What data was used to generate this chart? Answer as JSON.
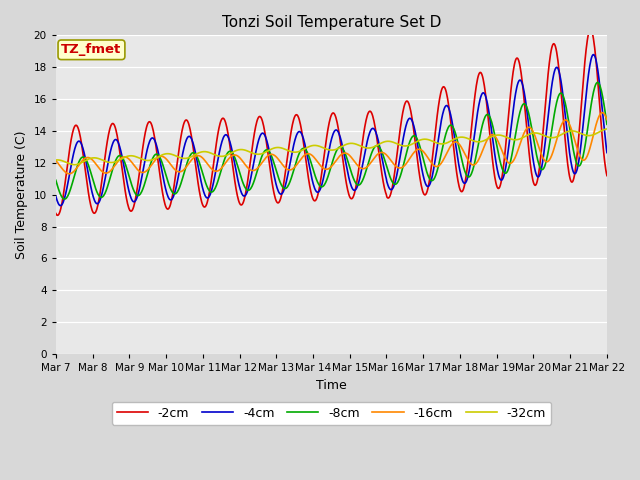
{
  "title": "Tonzi Soil Temperature Set D",
  "xlabel": "Time",
  "ylabel": "Soil Temperature (C)",
  "ylim": [
    0,
    20
  ],
  "tick_labels": [
    "Mar 7",
    "Mar 8",
    "Mar 9",
    "Mar 10",
    "Mar 11",
    "Mar 12",
    "Mar 13",
    "Mar 14",
    "Mar 15",
    "Mar 16",
    "Mar 17",
    "Mar 18",
    "Mar 19",
    "Mar 20",
    "Mar 21",
    "Mar 22"
  ],
  "series_labels": [
    "-2cm",
    "-4cm",
    "-8cm",
    "-16cm",
    "-32cm"
  ],
  "series_colors": [
    "#dd0000",
    "#0000cc",
    "#00aa00",
    "#ff8800",
    "#cccc00"
  ],
  "annotation_text": "TZ_fmet",
  "annotation_bg": "#ffffcc",
  "annotation_border": "#999900",
  "plot_bg": "#e8e8e8",
  "title_fontsize": 11,
  "axis_fontsize": 9,
  "tick_fontsize": 7.5,
  "legend_fontsize": 9
}
